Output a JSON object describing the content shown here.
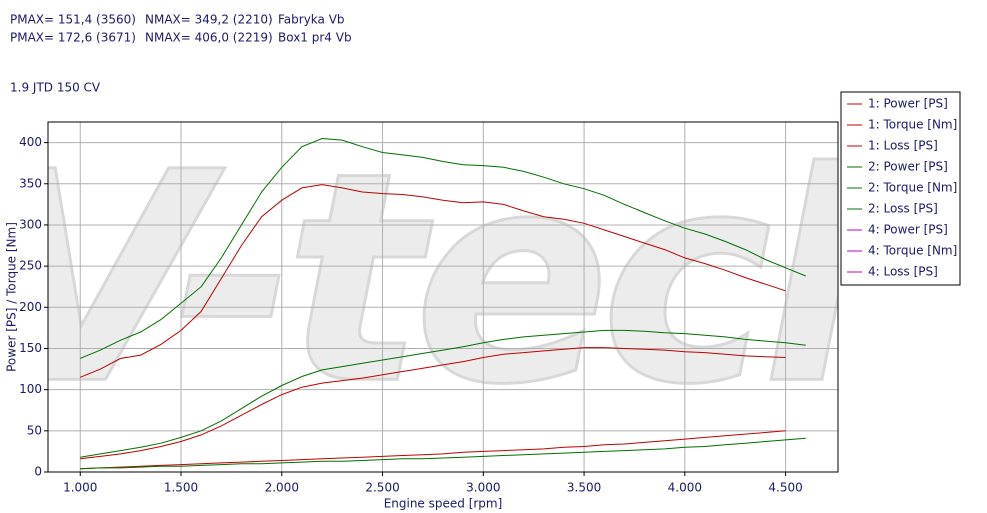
{
  "chart_data": {
    "type": "line",
    "annotations": [
      [
        "PMAX= 151,4 (3560)",
        "NMAX= 349,2 (2210)",
        "Fabryka Vb"
      ],
      [
        "PMAX= 172,6 (3671)",
        "NMAX= 406,0 (2219)",
        "Box1 pr4 Vb"
      ]
    ],
    "subtitle": "1.9 JTD 150 CV",
    "watermark": "V-tech",
    "x_label": "Engine speed [rpm]",
    "y_label": "Power [PS] / Torque [Nm]",
    "x": [
      1000,
      1100,
      1200,
      1300,
      1400,
      1500,
      1600,
      1700,
      1800,
      1900,
      2000,
      2100,
      2200,
      2300,
      2400,
      2500,
      2600,
      2700,
      2800,
      2900,
      3000,
      3100,
      3200,
      3300,
      3400,
      3500,
      3600,
      3700,
      3800,
      3900,
      4000,
      4100,
      4200,
      4300,
      4400,
      4500,
      4600
    ],
    "xlim": [
      840,
      4760
    ],
    "xticks": [
      {
        "value": 1000,
        "label": "1.000"
      },
      {
        "value": 1500,
        "label": "1.500"
      },
      {
        "value": 2000,
        "label": "2.000"
      },
      {
        "value": 2500,
        "label": "2.500"
      },
      {
        "value": 3000,
        "label": "3.000"
      },
      {
        "value": 3500,
        "label": "3.500"
      },
      {
        "value": 4000,
        "label": "4.000"
      },
      {
        "value": 4500,
        "label": "4.500"
      }
    ],
    "ylim": [
      0,
      425
    ],
    "yticks": [
      0,
      50,
      100,
      150,
      200,
      250,
      300,
      350,
      400
    ],
    "grid": true,
    "legend": "right",
    "series": [
      {
        "name": "1: Power [PS]",
        "color": "#c00000",
        "values": [
          16,
          19,
          22,
          26,
          31,
          37,
          45,
          56,
          69,
          82,
          94,
          103,
          108,
          111,
          114,
          118,
          122,
          126,
          130,
          134,
          139,
          143,
          145,
          147,
          149,
          151,
          151,
          150,
          149,
          148,
          146,
          145,
          143,
          141,
          140,
          139,
          null
        ]
      },
      {
        "name": "1: Torque [Nm]",
        "color": "#c00000",
        "values": [
          115,
          125,
          138,
          142,
          155,
          172,
          195,
          235,
          275,
          310,
          330,
          345,
          349,
          345,
          340,
          338,
          337,
          334,
          330,
          327,
          328,
          325,
          317,
          310,
          307,
          302,
          294,
          286,
          278,
          270,
          260,
          253,
          245,
          236,
          228,
          220,
          null
        ]
      },
      {
        "name": "1: Loss [PS]",
        "color": "#c00000",
        "values": [
          4,
          5,
          6,
          7,
          8,
          9,
          10,
          11,
          12,
          13,
          14,
          15,
          16,
          17,
          18,
          19,
          20,
          21,
          22,
          24,
          25,
          26,
          27,
          28,
          30,
          31,
          33,
          34,
          36,
          38,
          40,
          42,
          44,
          46,
          48,
          50,
          null
        ]
      },
      {
        "name": "2: Power [PS]",
        "color": "#007000",
        "values": [
          18,
          22,
          26,
          30,
          35,
          42,
          50,
          62,
          77,
          92,
          105,
          116,
          124,
          128,
          132,
          136,
          140,
          144,
          148,
          152,
          157,
          161,
          164,
          166,
          168,
          170,
          172,
          172,
          171,
          169,
          168,
          166,
          164,
          161,
          159,
          157,
          154
        ]
      },
      {
        "name": "2: Torque [Nm]",
        "color": "#007000",
        "values": [
          138,
          148,
          160,
          170,
          185,
          205,
          225,
          260,
          300,
          340,
          370,
          395,
          405,
          403,
          395,
          388,
          385,
          382,
          377,
          373,
          372,
          370,
          365,
          358,
          350,
          344,
          336,
          325,
          315,
          305,
          296,
          289,
          280,
          270,
          258,
          248,
          238
        ]
      },
      {
        "name": "2: Loss [PS]",
        "color": "#007000",
        "values": [
          4,
          5,
          5,
          6,
          7,
          7,
          8,
          9,
          10,
          10,
          11,
          12,
          13,
          13,
          14,
          15,
          16,
          16,
          17,
          18,
          19,
          20,
          21,
          22,
          23,
          24,
          25,
          26,
          27,
          28,
          30,
          31,
          33,
          35,
          37,
          39,
          41
        ]
      },
      {
        "name": "4: Power [PS]",
        "color": "#c000c0",
        "values": [
          null,
          null,
          null,
          null,
          null,
          null,
          null,
          null,
          null,
          null,
          null,
          null,
          null,
          null,
          null,
          null,
          null,
          null,
          null,
          null,
          null,
          null,
          null,
          null,
          null,
          null,
          null,
          null,
          null,
          null,
          null,
          null,
          null,
          null,
          null,
          null,
          null
        ]
      },
      {
        "name": "4: Torque [Nm]",
        "color": "#c000c0",
        "values": [
          null,
          null,
          null,
          null,
          null,
          null,
          null,
          null,
          null,
          null,
          null,
          null,
          null,
          null,
          null,
          null,
          null,
          null,
          null,
          null,
          null,
          null,
          null,
          null,
          null,
          null,
          null,
          null,
          null,
          null,
          null,
          null,
          null,
          null,
          null,
          null,
          null
        ]
      },
      {
        "name": "4: Loss [PS]",
        "color": "#c000c0",
        "values": [
          null,
          null,
          null,
          null,
          null,
          null,
          null,
          null,
          null,
          null,
          null,
          null,
          null,
          null,
          null,
          null,
          null,
          null,
          null,
          null,
          null,
          null,
          null,
          null,
          null,
          null,
          null,
          null,
          null,
          null,
          null,
          null,
          null,
          null,
          null,
          null,
          null
        ]
      }
    ]
  }
}
